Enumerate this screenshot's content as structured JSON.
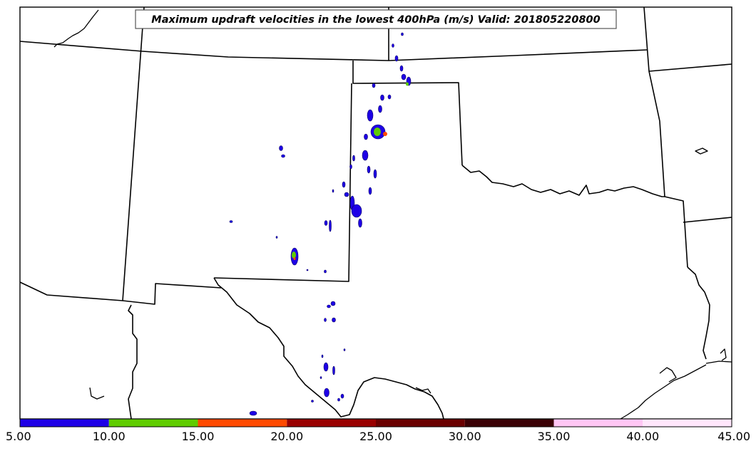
{
  "title": "Maximum updraft velocities in the lowest 400hPa (m/s) Valid: 201805220800",
  "colorbar": {
    "bins": [
      {
        "from": 5,
        "to": 10,
        "color": "#1e00e6"
      },
      {
        "from": 10,
        "to": 15,
        "color": "#5fcc00"
      },
      {
        "from": 15,
        "to": 20,
        "color": "#ff4a00"
      },
      {
        "from": 20,
        "to": 25,
        "color": "#990000"
      },
      {
        "from": 25,
        "to": 30,
        "color": "#6a0000"
      },
      {
        "from": 30,
        "to": 35,
        "color": "#3a0005"
      },
      {
        "from": 35,
        "to": 40,
        "color": "#ffc6f4"
      },
      {
        "from": 40,
        "to": 45,
        "color": "#ffe6fb"
      }
    ],
    "tick_labels": [
      "5.00",
      "10.00",
      "15.00",
      "20.00",
      "25.00",
      "30.00",
      "35.00",
      "40.00",
      "45.00"
    ]
  }
}
